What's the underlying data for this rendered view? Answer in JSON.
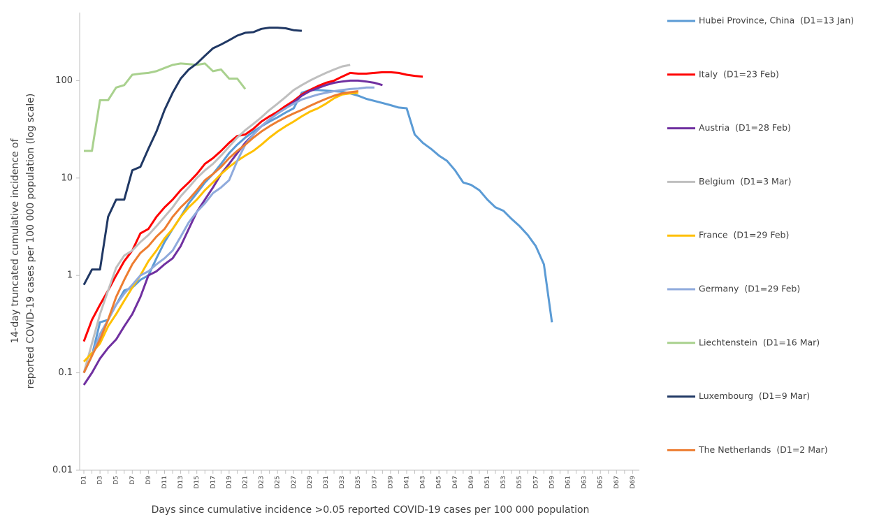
{
  "chart_data": {
    "type": "line",
    "y_label": [
      "14-day truncated cumulative incidence of",
      "reported COVID-19 cases per 100 000 population (log scale)"
    ],
    "x_label": "Days since cumulative incidence >0.05 reported COVID-19 cases per 100 000 population",
    "log_y": true,
    "ylim": [
      0.01,
      500
    ],
    "yticks": [
      0.01,
      0.1,
      1,
      10,
      100
    ],
    "categories": [
      "D1",
      null,
      "D3",
      null,
      "D5",
      null,
      "D7",
      null,
      "D9",
      null,
      "D11",
      null,
      "D13",
      null,
      "D15",
      null,
      "D17",
      null,
      "D19",
      null,
      "D21",
      null,
      "D23",
      null,
      "D25",
      null,
      "D27",
      null,
      "D29",
      null,
      "D31",
      null,
      "D33",
      null,
      "D35",
      null,
      "D37",
      null,
      "D39",
      null,
      "D41",
      null,
      "D43",
      null,
      "D45",
      null,
      "D47",
      null,
      "D49",
      null,
      "D51",
      null,
      "D53",
      null,
      "D55",
      null,
      "D57",
      null,
      "D59",
      null,
      "D61",
      null,
      "D63",
      null,
      "D65",
      null,
      "D67",
      null,
      "D69"
    ],
    "series": [
      {
        "name": "Hubei Province, China  (D1=13 Jan)",
        "color": "#5b9bd5",
        "values": [
          0.1,
          0.15,
          0.33,
          0.35,
          0.5,
          0.7,
          0.75,
          0.9,
          1,
          1.5,
          2.2,
          3,
          4,
          5.5,
          7,
          9,
          11,
          14,
          18,
          22,
          26,
          30,
          34,
          38,
          42,
          47,
          52,
          75,
          80,
          80,
          79,
          78,
          77,
          74,
          70,
          65,
          62,
          59,
          56,
          53,
          52,
          28,
          23,
          20,
          17,
          15,
          12,
          9,
          8.5,
          7.5,
          6,
          5,
          4.6,
          3.8,
          3.2,
          2.6,
          2,
          1.3,
          0.33,
          null,
          null,
          null,
          null,
          null,
          null,
          null,
          null,
          null,
          null
        ]
      },
      {
        "name": "Italy  (D1=23 Feb)",
        "color": "#ff0000",
        "values": [
          0.21,
          0.35,
          0.5,
          0.7,
          1,
          1.4,
          1.8,
          2.7,
          3,
          4,
          5,
          6,
          7.5,
          9,
          11,
          14,
          16,
          19,
          23,
          27,
          28,
          32,
          38,
          43,
          48,
          55,
          62,
          72,
          80,
          88,
          95,
          100,
          110,
          120,
          118,
          118,
          120,
          122,
          122,
          120,
          115,
          112,
          110,
          null,
          null,
          null,
          null,
          null,
          null,
          null,
          null,
          null,
          null,
          null,
          null,
          null,
          null,
          null,
          null,
          null,
          null,
          null,
          null,
          null,
          null,
          null,
          null,
          null,
          null
        ]
      },
      {
        "name": "Austria  (D1=28 Feb)",
        "color": "#7030a0",
        "values": [
          0.075,
          0.1,
          0.14,
          0.18,
          0.22,
          0.3,
          0.4,
          0.6,
          1,
          1.1,
          1.3,
          1.5,
          2,
          3,
          4.5,
          6,
          8,
          11,
          14,
          18,
          23,
          28,
          34,
          40,
          46,
          52,
          60,
          70,
          78,
          84,
          90,
          95,
          98,
          100,
          100,
          98,
          95,
          90,
          null,
          null,
          null,
          null,
          null,
          null,
          null,
          null,
          null,
          null,
          null,
          null,
          null,
          null,
          null,
          null,
          null,
          null,
          null,
          null,
          null,
          null,
          null,
          null,
          null,
          null,
          null,
          null,
          null,
          null,
          null
        ]
      },
      {
        "name": "Belgium  (D1=3 Mar)",
        "color": "#bfbfbf",
        "values": [
          0.1,
          0.2,
          0.4,
          0.7,
          1.2,
          1.6,
          1.8,
          2.2,
          2.6,
          3.2,
          4,
          5,
          6.5,
          8,
          10,
          12,
          14,
          17,
          21,
          26,
          31,
          36,
          42,
          50,
          58,
          68,
          80,
          90,
          100,
          110,
          120,
          130,
          140,
          145,
          null,
          null,
          null,
          null,
          null,
          null,
          null,
          null,
          null,
          null,
          null,
          null,
          null,
          null,
          null,
          null,
          null,
          null,
          null,
          null,
          null,
          null,
          null,
          null,
          null,
          null,
          null,
          null,
          null,
          null,
          null,
          null,
          null,
          null,
          null
        ]
      },
      {
        "name": "France  (D1=29 Feb)",
        "color": "#ffc000",
        "values": [
          0.13,
          0.16,
          0.2,
          0.3,
          0.4,
          0.55,
          0.75,
          1,
          1.4,
          1.8,
          2.4,
          3,
          4,
          5,
          6,
          7.5,
          9,
          11,
          13,
          15,
          17,
          19,
          22,
          26,
          30,
          34,
          38,
          43,
          48,
          52,
          58,
          66,
          72,
          74,
          75,
          null,
          null,
          null,
          null,
          null,
          null,
          null,
          null,
          null,
          null,
          null,
          null,
          null,
          null,
          null,
          null,
          null,
          null,
          null,
          null,
          null,
          null,
          null,
          null,
          null,
          null,
          null,
          null,
          null,
          null,
          null,
          null,
          null,
          null
        ]
      },
      {
        "name": "Germany  (D1=29 Feb)",
        "color": "#8faadc",
        "values": [
          0.1,
          0.15,
          0.25,
          0.35,
          0.5,
          0.65,
          0.8,
          1,
          1.1,
          1.3,
          1.5,
          1.8,
          2.5,
          3.5,
          4.5,
          5.5,
          7,
          8,
          9.5,
          15,
          22,
          28,
          34,
          40,
          46,
          52,
          58,
          64,
          68,
          72,
          75,
          78,
          80,
          82,
          83,
          85,
          85,
          null,
          null,
          null,
          null,
          null,
          null,
          null,
          null,
          null,
          null,
          null,
          null,
          null,
          null,
          null,
          null,
          null,
          null,
          null,
          null,
          null,
          null,
          null,
          null,
          null,
          null,
          null,
          null,
          null,
          null,
          null,
          null
        ]
      },
      {
        "name": "Liechtenstein  (D1=16 Mar)",
        "color": "#a9d18e",
        "values": [
          19,
          19,
          63,
          63,
          85,
          90,
          115,
          118,
          120,
          125,
          135,
          145,
          150,
          148,
          145,
          150,
          125,
          130,
          105,
          105,
          82,
          null,
          null,
          null,
          null,
          null,
          null,
          null,
          null,
          null,
          null,
          null,
          null,
          null,
          null,
          null,
          null,
          null,
          null,
          null,
          null,
          null,
          null,
          null,
          null,
          null,
          null,
          null,
          null,
          null,
          null,
          null,
          null,
          null,
          null,
          null,
          null,
          null,
          null,
          null,
          null,
          null,
          null,
          null,
          null,
          null,
          null,
          null,
          null
        ]
      },
      {
        "name": "Luxembourg  (D1=9 Mar)",
        "color": "#203864",
        "values": [
          0.8,
          1.15,
          1.15,
          4,
          6,
          6,
          12,
          13,
          20,
          30,
          50,
          75,
          105,
          130,
          150,
          180,
          215,
          235,
          260,
          290,
          310,
          315,
          340,
          350,
          350,
          345,
          330,
          325,
          null,
          null,
          null,
          null,
          null,
          null,
          null,
          null,
          null,
          null,
          null,
          null,
          null,
          null,
          null,
          null,
          null,
          null,
          null,
          null,
          null,
          null,
          null,
          null,
          null,
          null,
          null,
          null,
          null,
          null,
          null,
          null,
          null,
          null,
          null,
          null,
          null,
          null,
          null,
          null,
          null
        ]
      },
      {
        "name": "The Netherlands  (D1=2 Mar)",
        "color": "#ed7d31",
        "values": [
          0.1,
          0.15,
          0.22,
          0.35,
          0.6,
          0.9,
          1.3,
          1.7,
          2,
          2.5,
          3,
          4,
          5,
          6,
          7.5,
          9.5,
          11,
          13,
          16,
          19,
          22,
          26,
          30,
          34,
          38,
          42,
          46,
          50,
          55,
          60,
          65,
          70,
          74,
          76,
          78,
          null,
          null,
          null,
          null,
          null,
          null,
          null,
          null,
          null,
          null,
          null,
          null,
          null,
          null,
          null,
          null,
          null,
          null,
          null,
          null,
          null,
          null,
          null,
          null,
          null,
          null,
          null,
          null,
          null,
          null,
          null,
          null,
          null,
          null
        ]
      }
    ]
  }
}
